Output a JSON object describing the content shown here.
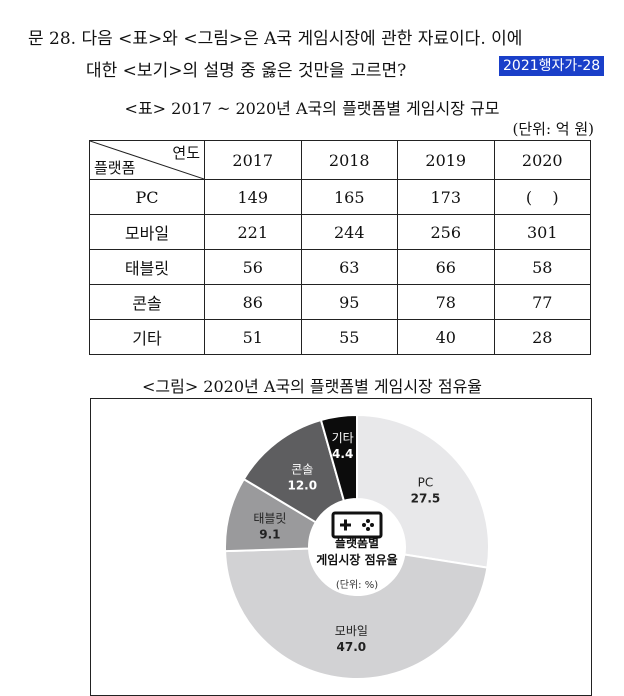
{
  "question": {
    "line1": "문 28. 다음 <표>와 <그림>은 A국 게임시장에 관한 자료이다. 이에",
    "line2": "대한 <보기>의 설명 중 옳은 것만을 고르면?",
    "source_tag": "2021행자가-28"
  },
  "table": {
    "title": "<표> 2017 ~ 2020년 A국의 플랫폼별 게임시장 규모",
    "unit": "(단위: 억 원)",
    "header_year": "연도",
    "header_platform": "플랫폼",
    "years": [
      "2017",
      "2018",
      "2019",
      "2020"
    ],
    "rows": [
      {
        "platform": "PC",
        "values": [
          "149",
          "165",
          "173",
          "(    )"
        ]
      },
      {
        "platform": "모바일",
        "values": [
          "221",
          "244",
          "256",
          "301"
        ]
      },
      {
        "platform": "태블릿",
        "values": [
          "56",
          "63",
          "66",
          "58"
        ]
      },
      {
        "platform": "콘솔",
        "values": [
          "86",
          "95",
          "78",
          "77"
        ]
      },
      {
        "platform": "기타",
        "values": [
          "51",
          "55",
          "40",
          "28"
        ]
      }
    ]
  },
  "figure": {
    "title": "<그림> 2020년 A국의 플랫폼별 게임시장 점유율",
    "center_label_1": "플랫폼별",
    "center_label_2": "게임시장 점유율",
    "center_unit": "(단위: %)",
    "icon": "gamepad-icon"
  },
  "chart_data": {
    "type": "pie",
    "donut": true,
    "title": "<그림> 2020년 A국의 플랫폼별 게임시장 점유율",
    "unit": "%",
    "slices": [
      {
        "label": "PC",
        "value": 27.5,
        "color": "#e8e8ea",
        "text_color": "#222222"
      },
      {
        "label": "모바일",
        "value": 47.0,
        "color": "#d2d2d4",
        "text_color": "#222222"
      },
      {
        "label": "태블릿",
        "value": 9.1,
        "color": "#9a9a9c",
        "text_color": "#222222"
      },
      {
        "label": "콘솔",
        "value": 12.0,
        "color": "#5e5e60",
        "text_color": "#ffffff"
      },
      {
        "label": "기타",
        "value": 4.4,
        "color": "#0c0c0c",
        "text_color": "#ffffff"
      }
    ]
  }
}
